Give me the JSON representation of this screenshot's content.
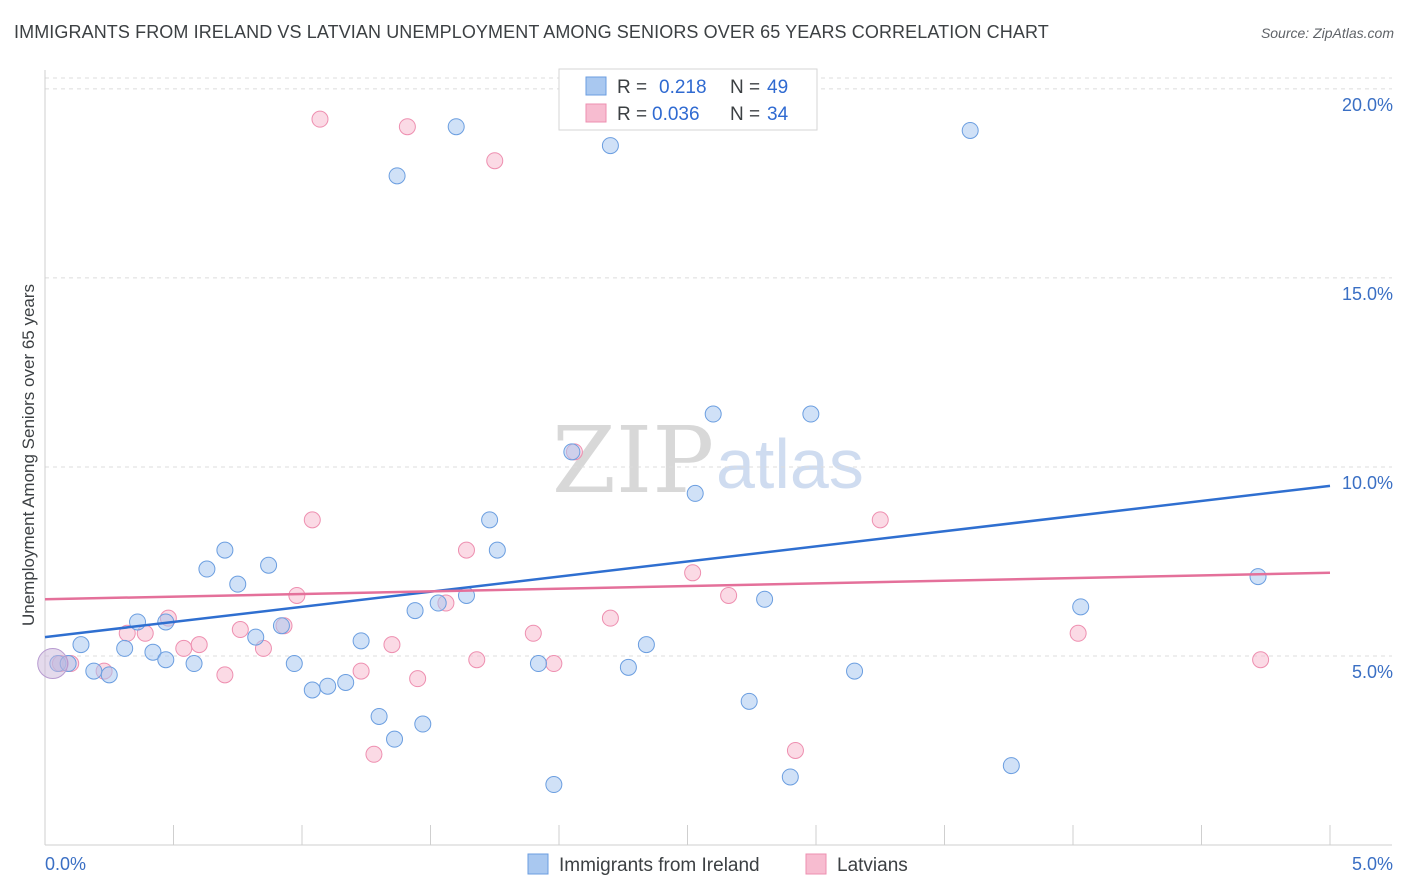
{
  "header": {
    "title": "IMMIGRANTS FROM IRELAND VS LATVIAN UNEMPLOYMENT AMONG SENIORS OVER 65 YEARS CORRELATION CHART",
    "source": "Source: ZipAtlas.com"
  },
  "watermark": {
    "zip": "ZIP",
    "atlas": "atlas"
  },
  "legend": {
    "r_label": "R =",
    "n_label": "N =",
    "ireland": {
      "r": "0.218",
      "n": "49"
    },
    "latvians": {
      "r": "0.036",
      "n": "34"
    }
  },
  "colors": {
    "ireland_fill": "#a9c8f0",
    "ireland_stroke": "#6b9ee0",
    "ireland_line": "#2f6fd0",
    "latvians_fill": "#f7bcd0",
    "latvians_stroke": "#ee8fb0",
    "latvians_line": "#e4709a",
    "tick_text": "#3a6fc4",
    "grid": "#dcdcdc"
  },
  "chart_data": {
    "type": "scatter",
    "title": "IMMIGRANTS FROM IRELAND VS LATVIAN UNEMPLOYMENT AMONG SENIORS OVER 65 YEARS CORRELATION CHART",
    "xlabel": "",
    "ylabel": "Unemployment Among Seniors over 65 years",
    "xlim": [
      0,
      5
    ],
    "ylim": [
      0,
      20.5
    ],
    "x_tick_labels": [
      "0.0%",
      "5.0%"
    ],
    "y_ticks": [
      5,
      10,
      15,
      20
    ],
    "y_tick_labels": [
      "5.0%",
      "10.0%",
      "15.0%",
      "20.0%"
    ],
    "grid": true,
    "legend_position": "bottom",
    "series": [
      {
        "name": "Immigrants from Ireland",
        "color": "#a9c8f0",
        "trend": [
          [
            0,
            5.5
          ],
          [
            5,
            9.5
          ]
        ],
        "points": [
          [
            0.05,
            4.8
          ],
          [
            0.09,
            4.8
          ],
          [
            0.14,
            5.3
          ],
          [
            0.19,
            4.6
          ],
          [
            0.25,
            4.5
          ],
          [
            0.31,
            5.2
          ],
          [
            0.36,
            5.9
          ],
          [
            0.42,
            5.1
          ],
          [
            0.47,
            5.9
          ],
          [
            0.47,
            4.9
          ],
          [
            0.58,
            4.8
          ],
          [
            0.63,
            7.3
          ],
          [
            0.7,
            7.8
          ],
          [
            0.75,
            6.9
          ],
          [
            0.82,
            5.5
          ],
          [
            0.87,
            7.4
          ],
          [
            0.92,
            5.8
          ],
          [
            0.97,
            4.8
          ],
          [
            1.04,
            4.1
          ],
          [
            1.1,
            4.2
          ],
          [
            1.17,
            4.3
          ],
          [
            1.23,
            5.4
          ],
          [
            1.3,
            3.4
          ],
          [
            1.36,
            2.8
          ],
          [
            1.37,
            17.7
          ],
          [
            1.44,
            6.2
          ],
          [
            1.47,
            3.2
          ],
          [
            1.53,
            6.4
          ],
          [
            1.6,
            19.0
          ],
          [
            1.64,
            6.6
          ],
          [
            1.73,
            8.6
          ],
          [
            1.76,
            7.8
          ],
          [
            1.92,
            4.8
          ],
          [
            1.98,
            1.6
          ],
          [
            2.05,
            10.4
          ],
          [
            2.2,
            18.5
          ],
          [
            2.27,
            4.7
          ],
          [
            2.34,
            5.3
          ],
          [
            2.53,
            9.3
          ],
          [
            2.6,
            11.4
          ],
          [
            2.74,
            3.8
          ],
          [
            2.8,
            6.5
          ],
          [
            2.9,
            1.8
          ],
          [
            2.98,
            11.4
          ],
          [
            3.15,
            4.6
          ],
          [
            3.6,
            18.9
          ],
          [
            3.76,
            2.1
          ],
          [
            4.03,
            6.3
          ],
          [
            4.72,
            7.1
          ]
        ]
      },
      {
        "name": "Latvians",
        "color": "#f7bcd0",
        "trend": [
          [
            0,
            6.5
          ],
          [
            5,
            7.2
          ]
        ],
        "points": [
          [
            0.06,
            4.8
          ],
          [
            0.1,
            4.8
          ],
          [
            0.23,
            4.6
          ],
          [
            0.32,
            5.6
          ],
          [
            0.39,
            5.6
          ],
          [
            0.48,
            6.0
          ],
          [
            0.54,
            5.2
          ],
          [
            0.6,
            5.3
          ],
          [
            0.7,
            4.5
          ],
          [
            0.76,
            5.7
          ],
          [
            0.85,
            5.2
          ],
          [
            0.93,
            5.8
          ],
          [
            0.98,
            6.6
          ],
          [
            1.04,
            8.6
          ],
          [
            1.07,
            19.2
          ],
          [
            1.23,
            4.6
          ],
          [
            1.28,
            2.4
          ],
          [
            1.35,
            5.3
          ],
          [
            1.41,
            19.0
          ],
          [
            1.45,
            4.4
          ],
          [
            1.56,
            6.4
          ],
          [
            1.64,
            7.8
          ],
          [
            1.68,
            4.9
          ],
          [
            1.75,
            18.1
          ],
          [
            1.9,
            5.6
          ],
          [
            1.98,
            4.8
          ],
          [
            2.06,
            10.4
          ],
          [
            2.2,
            6.0
          ],
          [
            2.52,
            7.2
          ],
          [
            2.66,
            6.6
          ],
          [
            2.92,
            2.5
          ],
          [
            3.25,
            8.6
          ],
          [
            4.02,
            5.6
          ],
          [
            4.73,
            4.9
          ]
        ]
      }
    ]
  },
  "bottom_legend": {
    "ireland": "Immigrants from Ireland",
    "latvians": "Latvians"
  }
}
